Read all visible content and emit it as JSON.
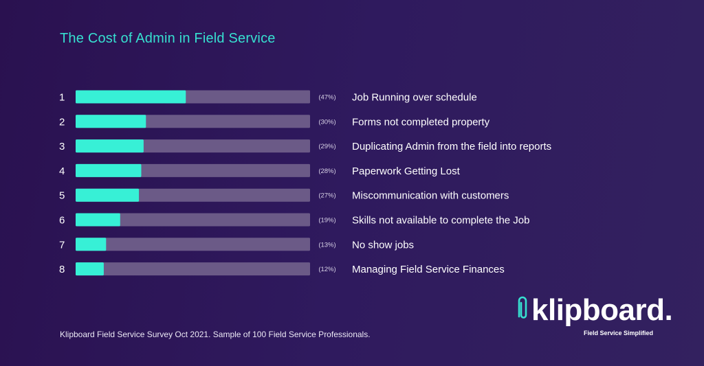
{
  "chart_data": {
    "type": "bar",
    "title": "The Cost of Admin in Field Service",
    "orientation": "horizontal",
    "ranks": [
      "1",
      "2",
      "3",
      "4",
      "5",
      "6",
      "7",
      "8"
    ],
    "categories": [
      "Job Running over schedule",
      "Forms not completed property",
      "Duplicating Admin from the field into reports",
      "Paperwork Getting Lost",
      "Miscommunication with customers",
      "Skills not available to complete the Job",
      "No show jobs",
      "Managing Field Service Finances"
    ],
    "values": [
      47,
      30,
      29,
      28,
      27,
      19,
      13,
      12
    ],
    "value_labels": [
      "(47%)",
      "(30%)",
      "(29%)",
      "(28%)",
      "(27%)",
      "(19%)",
      "(13%)",
      "(12%)"
    ],
    "xlim": [
      0,
      100
    ],
    "unit": "%",
    "colors": {
      "bar": "#37f0d6",
      "track": "#6b5a87",
      "text": "#ffffff",
      "title": "#37e0d0"
    }
  },
  "footer": {
    "source": "Klipboard Field Service Survey Oct 2021. Sample of 100 Field Service Professionals."
  },
  "logo": {
    "wordmark": "klipboard.",
    "tagline": "Field Service Simplified",
    "icon": "paperclip-icon"
  }
}
